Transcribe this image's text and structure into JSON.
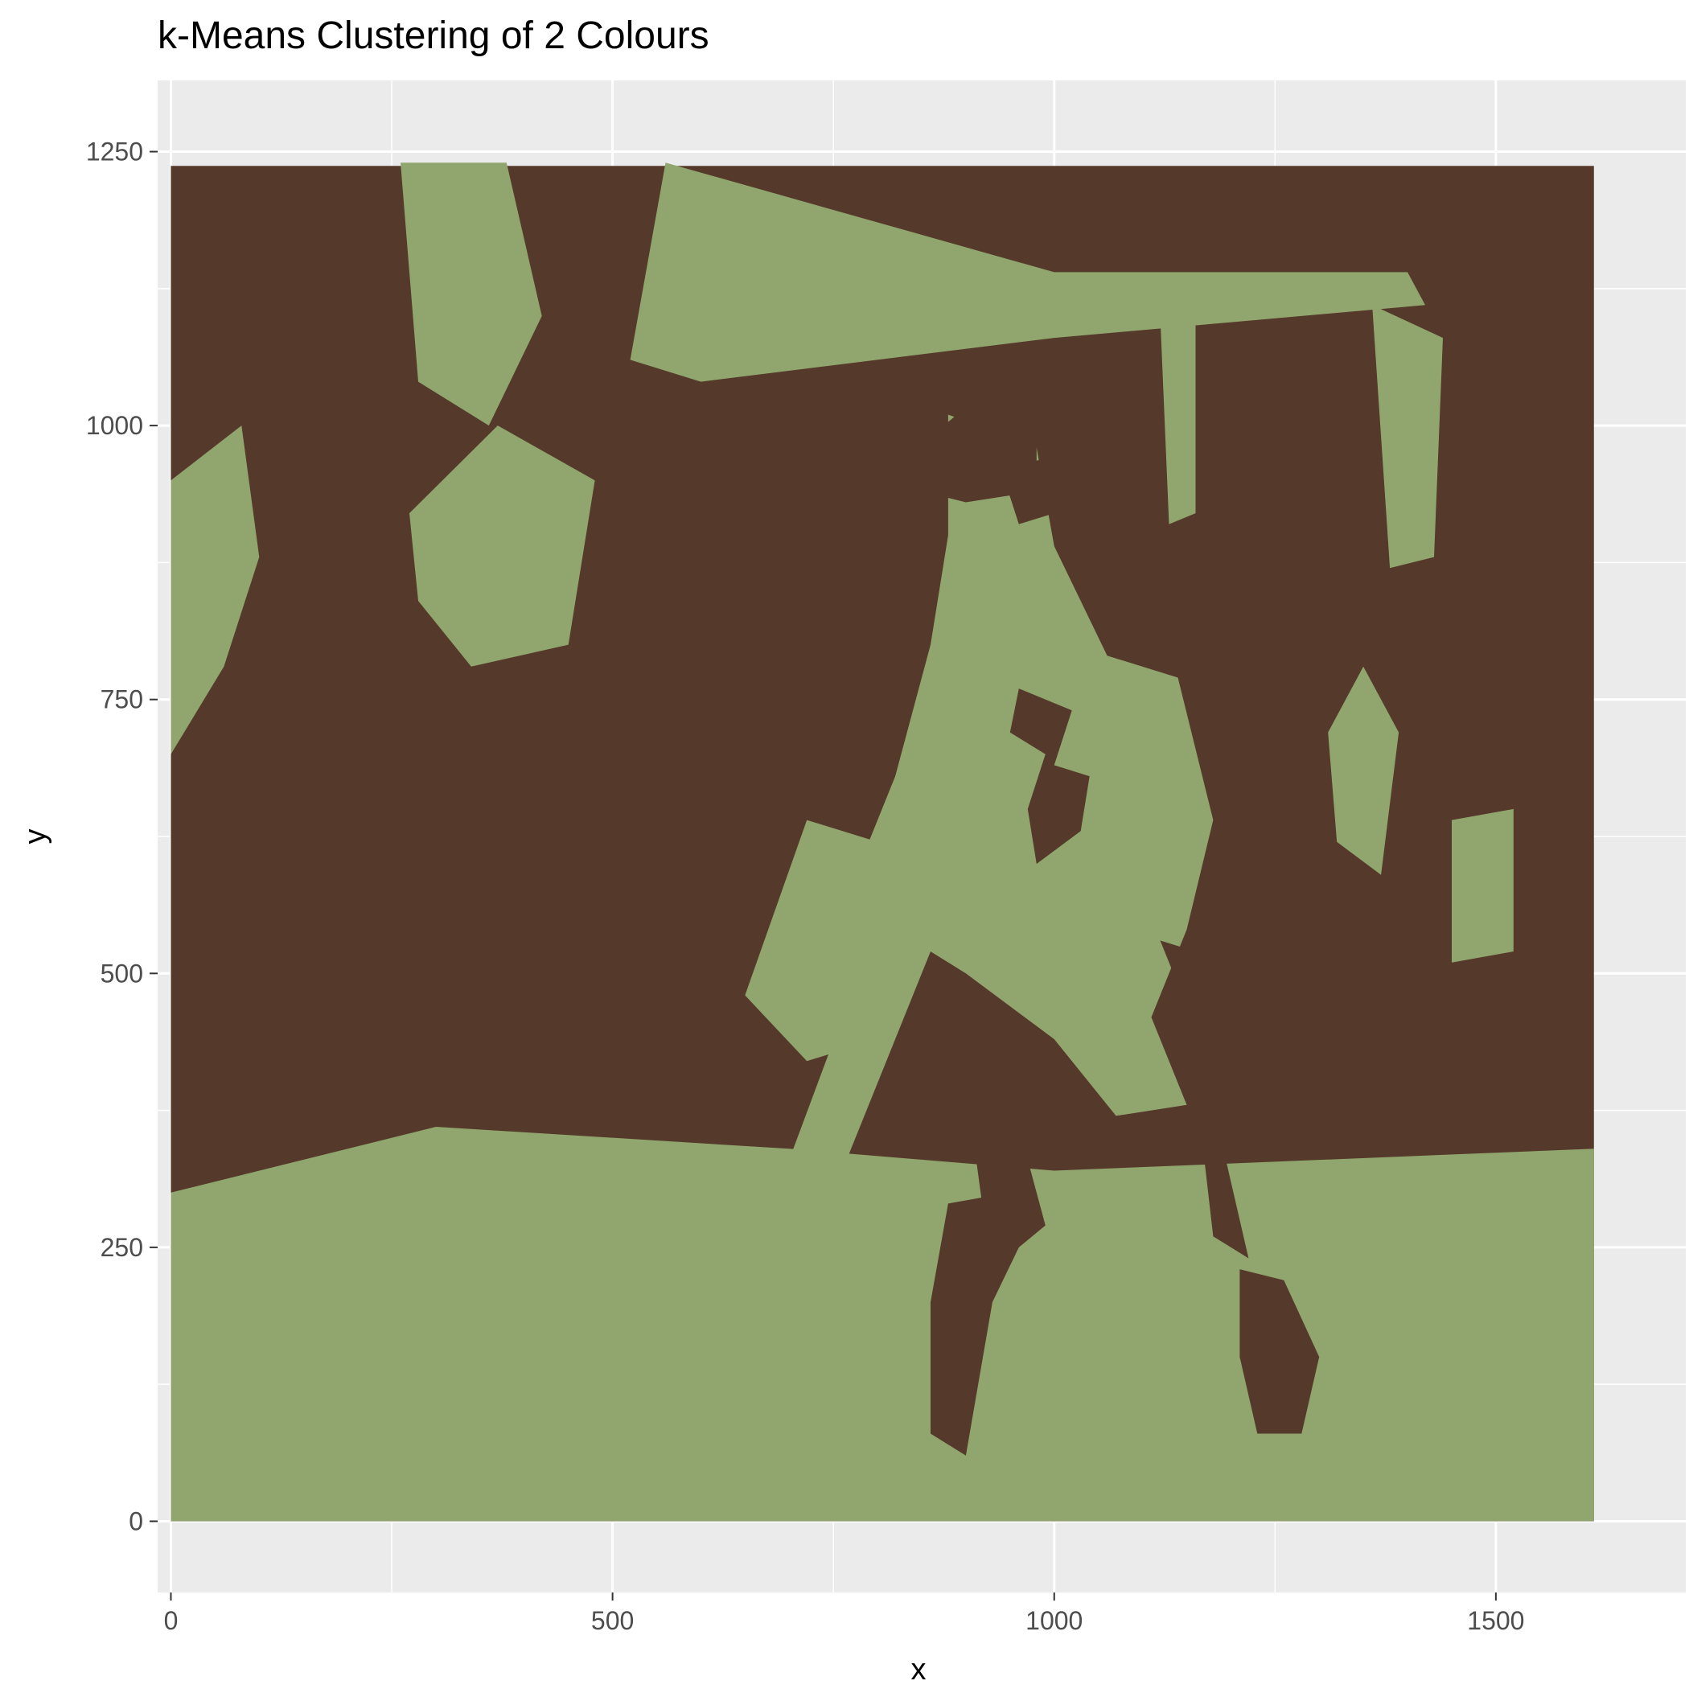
{
  "chart_data": {
    "type": "scatter",
    "title": "k-Means Clustering of 2 Colours",
    "xlabel": "x",
    "ylabel": "y",
    "xlim": [
      -15,
      1715
    ],
    "ylim": [
      -65,
      1315
    ],
    "x_ticks": [
      0,
      500,
      1000,
      1500
    ],
    "x_tick_labels": [
      "0",
      "500",
      "1000",
      "1500"
    ],
    "y_ticks": [
      0,
      250,
      500,
      750,
      1000,
      1250
    ],
    "y_tick_labels": [
      "0",
      "250",
      "500",
      "750",
      "1000",
      "1250"
    ],
    "grid": true,
    "legend": "none",
    "image_extent": {
      "x": [
        0,
        1611
      ],
      "y": [
        0,
        1237
      ]
    },
    "clusters": [
      {
        "color": "#55392A",
        "role": "dark cluster (background, shadows)"
      },
      {
        "color": "#91A66E",
        "role": "light cluster (field, jersey, highlights)"
      }
    ],
    "regions": [
      {
        "cluster": 1,
        "points": [
          [
            0,
            0
          ],
          [
            1611,
            0
          ],
          [
            1611,
            340
          ],
          [
            1000,
            320
          ],
          [
            700,
            340
          ],
          [
            300,
            360
          ],
          [
            0,
            300
          ]
        ]
      },
      {
        "cluster": 1,
        "points": [
          [
            1450,
            640
          ],
          [
            1520,
            650
          ],
          [
            1520,
            520
          ],
          [
            1450,
            510
          ]
        ]
      },
      {
        "cluster": 1,
        "points": [
          [
            1350,
            780
          ],
          [
            1390,
            720
          ],
          [
            1370,
            590
          ],
          [
            1320,
            620
          ],
          [
            1310,
            720
          ]
        ]
      },
      {
        "cluster": 1,
        "points": [
          [
            0,
            950
          ],
          [
            80,
            1000
          ],
          [
            100,
            880
          ],
          [
            60,
            780
          ],
          [
            0,
            700
          ]
        ]
      },
      {
        "cluster": 1,
        "points": [
          [
            260,
            1240
          ],
          [
            380,
            1240
          ],
          [
            420,
            1100
          ],
          [
            360,
            1000
          ],
          [
            280,
            1040
          ]
        ]
      },
      {
        "cluster": 1,
        "points": [
          [
            520,
            1060
          ],
          [
            560,
            1240
          ],
          [
            1000,
            1140
          ],
          [
            1400,
            1140
          ],
          [
            1420,
            1110
          ],
          [
            1000,
            1080
          ],
          [
            600,
            1040
          ]
        ]
      },
      {
        "cluster": 1,
        "points": [
          [
            1120,
            1100
          ],
          [
            1160,
            1110
          ],
          [
            1160,
            920
          ],
          [
            1130,
            910
          ]
        ]
      },
      {
        "cluster": 1,
        "points": [
          [
            1360,
            1110
          ],
          [
            1440,
            1080
          ],
          [
            1430,
            880
          ],
          [
            1380,
            870
          ]
        ]
      },
      {
        "cluster": 1,
        "points": [
          [
            270,
            920
          ],
          [
            370,
            1000
          ],
          [
            480,
            950
          ],
          [
            450,
            800
          ],
          [
            340,
            780
          ],
          [
            280,
            840
          ]
        ]
      },
      {
        "cluster": 1,
        "points": [
          [
            880,
            1010
          ],
          [
            980,
            980
          ],
          [
            1000,
            890
          ],
          [
            1060,
            790
          ],
          [
            1140,
            770
          ],
          [
            1180,
            640
          ],
          [
            1150,
            540
          ],
          [
            1110,
            460
          ],
          [
            1150,
            380
          ],
          [
            1070,
            370
          ],
          [
            1000,
            440
          ],
          [
            900,
            500
          ],
          [
            860,
            520
          ],
          [
            810,
            420
          ],
          [
            760,
            320
          ],
          [
            700,
            330
          ],
          [
            760,
            460
          ],
          [
            760,
            560
          ],
          [
            820,
            680
          ],
          [
            860,
            800
          ],
          [
            880,
            900
          ]
        ]
      },
      {
        "cluster": 1,
        "points": [
          [
            650,
            480
          ],
          [
            720,
            640
          ],
          [
            800,
            620
          ],
          [
            860,
            520
          ],
          [
            800,
            440
          ],
          [
            720,
            420
          ]
        ]
      },
      {
        "cluster": 1,
        "points": [
          [
            1150,
            280
          ],
          [
            1250,
            240
          ],
          [
            1220,
            180
          ],
          [
            1150,
            220
          ]
        ]
      },
      {
        "cluster": 0,
        "points": [
          [
            860,
            80
          ],
          [
            900,
            60
          ],
          [
            930,
            200
          ],
          [
            960,
            250
          ],
          [
            950,
            300
          ],
          [
            880,
            290
          ],
          [
            860,
            200
          ]
        ]
      },
      {
        "cluster": 0,
        "points": [
          [
            1210,
            230
          ],
          [
            1260,
            220
          ],
          [
            1300,
            150
          ],
          [
            1280,
            80
          ],
          [
            1230,
            80
          ],
          [
            1210,
            150
          ]
        ]
      },
      {
        "cluster": 0,
        "points": [
          [
            1120,
            530
          ],
          [
            1150,
            470
          ],
          [
            1180,
            260
          ],
          [
            1220,
            240
          ],
          [
            1180,
            380
          ],
          [
            1160,
            520
          ]
        ]
      },
      {
        "cluster": 0,
        "points": [
          [
            900,
            400
          ],
          [
            960,
            360
          ],
          [
            990,
            270
          ],
          [
            960,
            250
          ],
          [
            920,
            280
          ]
        ]
      },
      {
        "cluster": 0,
        "points": [
          [
            960,
            760
          ],
          [
            1020,
            740
          ],
          [
            1000,
            690
          ],
          [
            1040,
            680
          ],
          [
            1030,
            630
          ],
          [
            980,
            600
          ],
          [
            970,
            650
          ],
          [
            990,
            700
          ],
          [
            950,
            720
          ]
        ]
      },
      {
        "cluster": 0,
        "points": [
          [
            940,
            960
          ],
          [
            990,
            970
          ],
          [
            1000,
            920
          ],
          [
            960,
            910
          ]
        ]
      },
      {
        "cluster": 0,
        "points": [
          [
            830,
            970
          ],
          [
            890,
            1010
          ],
          [
            980,
            1000
          ],
          [
            980,
            940
          ],
          [
            900,
            930
          ],
          [
            850,
            940
          ]
        ]
      }
    ]
  }
}
